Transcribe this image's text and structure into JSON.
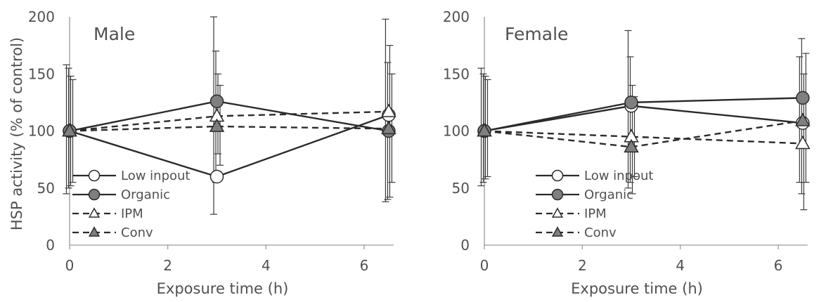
{
  "chart_data": [
    {
      "type": "line",
      "panel_label": "Male",
      "xlabel": "Exposure time (h)",
      "ylabel": "HSP activity (% of control)",
      "xlim": [
        0,
        6.6
      ],
      "ylim": [
        0,
        200
      ],
      "xticks": [
        "0",
        "2",
        "4",
        "6"
      ],
      "yticks": [
        "0",
        "50",
        "100",
        "150",
        "200"
      ],
      "grid": false,
      "legend_position": "lower-left",
      "series": [
        {
          "name": "Low inpout",
          "marker": "circle-open",
          "line": "solid",
          "x": [
            0,
            3,
            6.5
          ],
          "y": [
            100,
            60,
            114
          ],
          "err_low": [
            45,
            27,
            38
          ],
          "err_high": [
            158,
            200,
            198
          ]
        },
        {
          "name": "Organic",
          "marker": "circle-filled",
          "line": "solid",
          "x": [
            0,
            3,
            6.5
          ],
          "y": [
            100,
            126,
            100
          ],
          "err_low": [
            50,
            55,
            40
          ],
          "err_high": [
            155,
            170,
            160
          ]
        },
        {
          "name": "IPM",
          "marker": "triangle-open",
          "line": "dashed",
          "x": [
            0,
            3,
            6.5
          ],
          "y": [
            100,
            113,
            117
          ],
          "err_low": [
            52,
            80,
            42
          ],
          "err_high": [
            148,
            150,
            175
          ]
        },
        {
          "name": "Conv",
          "marker": "triangle-filled",
          "line": "dashed",
          "x": [
            0,
            3,
            6.5
          ],
          "y": [
            100,
            104,
            102
          ],
          "err_low": [
            55,
            70,
            55
          ],
          "err_high": [
            145,
            140,
            150
          ]
        }
      ]
    },
    {
      "type": "line",
      "panel_label": "Female",
      "xlabel": "Exposure time (h)",
      "ylabel": "",
      "xlim": [
        0,
        6.6
      ],
      "ylim": [
        0,
        200
      ],
      "xticks": [
        "0",
        "2",
        "4",
        "6"
      ],
      "yticks": [
        "0",
        "50",
        "100",
        "150",
        "200"
      ],
      "grid": false,
      "legend_position": "lower-center",
      "series": [
        {
          "name": "Low inpout",
          "marker": "circle-open",
          "line": "solid",
          "x": [
            0,
            3,
            6.5
          ],
          "y": [
            100,
            122,
            107
          ],
          "err_low": [
            52,
            50,
            55
          ],
          "err_high": [
            155,
            188,
            165
          ]
        },
        {
          "name": "Organic",
          "marker": "circle-filled",
          "line": "solid",
          "x": [
            0,
            3,
            6.5
          ],
          "y": [
            100,
            125,
            129
          ],
          "err_low": [
            55,
            55,
            45
          ],
          "err_high": [
            150,
            165,
            181
          ]
        },
        {
          "name": "IPM",
          "marker": "triangle-open",
          "line": "dashed",
          "x": [
            0,
            3,
            6.5
          ],
          "y": [
            100,
            95,
            89
          ],
          "err_low": [
            58,
            45,
            31
          ],
          "err_high": [
            148,
            140,
            150
          ]
        },
        {
          "name": "Conv",
          "marker": "triangle-filled",
          "line": "dashed",
          "x": [
            0,
            3,
            6.5
          ],
          "y": [
            100,
            86,
            109
          ],
          "err_low": [
            60,
            60,
            55
          ],
          "err_high": [
            145,
            130,
            168
          ]
        }
      ]
    }
  ]
}
